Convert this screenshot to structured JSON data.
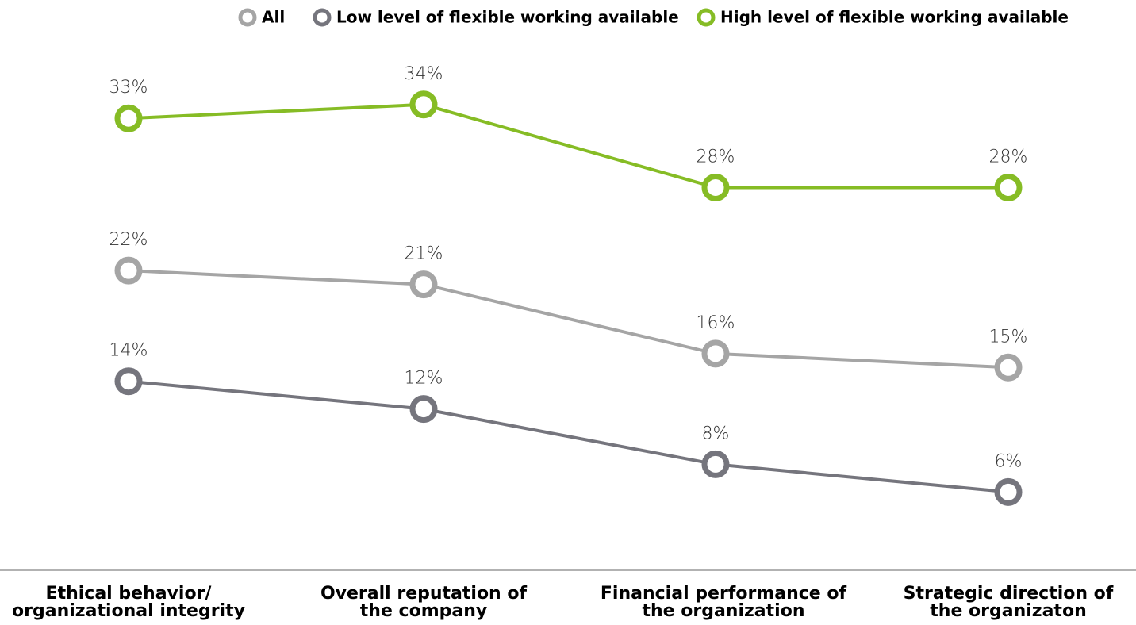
{
  "chart_data": {
    "type": "line",
    "categories": [
      "Ethical behavior/\norganizational integrity",
      "Overall reputation of\nthe company",
      "Financial performance of\nthe organization",
      "Strategic direction of\nthe organizaton"
    ],
    "series": [
      {
        "name": "All",
        "color": "#a5a5a5",
        "values": [
          22,
          21,
          16,
          15
        ],
        "value_labels": [
          "22%",
          "21%",
          "16%",
          "15%"
        ]
      },
      {
        "name": "Low level of flexible working available",
        "color": "#75757d",
        "values": [
          14,
          12,
          8,
          6
        ],
        "value_labels": [
          "14%",
          "12%",
          "8%",
          "6%"
        ]
      },
      {
        "name": "High level of flexible working available",
        "color": "#86bc25",
        "values": [
          33,
          34,
          28,
          28
        ],
        "value_labels": [
          "33%",
          "34%",
          "28%",
          "28%"
        ]
      }
    ],
    "ylim": [
      0,
      38
    ],
    "legend": "top"
  }
}
